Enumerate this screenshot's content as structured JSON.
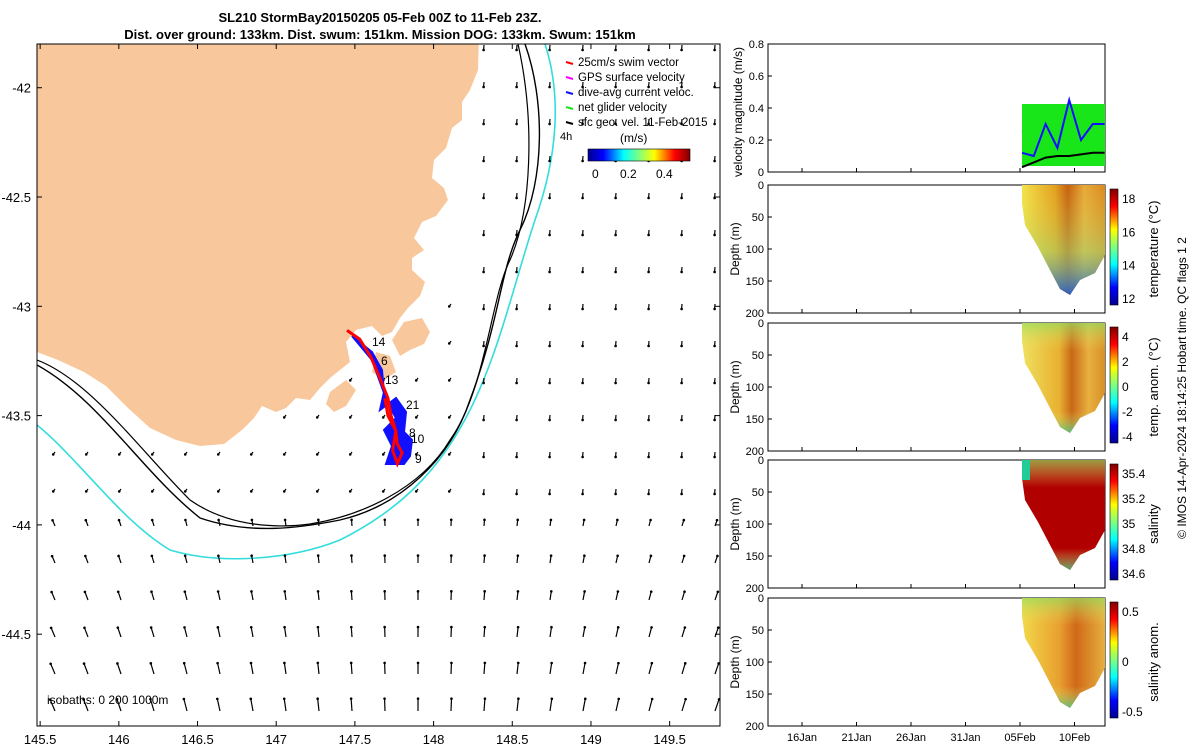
{
  "header": {
    "title_line1": "SL210 StormBay20150205 05-Feb 00Z to 11-Feb 23Z.",
    "title_line2": "Dist. over ground: 133km. Dist. swum: 151km. Mission DOG: 133km. Swum: 151km"
  },
  "colors": {
    "land": "#f8c89c",
    "track_red": "#ff0000",
    "track_blue": "#1010ff",
    "iso_cyan": "#33dddd",
    "iso_black": "#000000",
    "net_green": "#19e619"
  },
  "map": {
    "legend": [
      {
        "label": "25cm/s swim vector",
        "color": "#ff0000"
      },
      {
        "label": "GPS surface velocity",
        "color": "#ff00ff"
      },
      {
        "label": "dive-avg current veloc.",
        "color": "#1010ff"
      },
      {
        "label": "net glider velocity",
        "color": "#19e619"
      },
      {
        "label": "sfc geo. vel. 11-Feb-2015",
        "color": "#000000"
      }
    ],
    "scale_label": "4h",
    "colorbar_label": "(m/s)",
    "colorbar_ticks": [
      "0",
      "0.2",
      "0.4"
    ],
    "isobaths_label": "isobaths: 0  200  1000m",
    "track_labels": [
      "14",
      "6",
      "13",
      "21",
      "8",
      "10",
      "9"
    ]
  },
  "panels": {
    "velocity_ylabel": "velocity magnitude (m/s)",
    "depth_ylabel": "Depth (m)",
    "depth_ticks": [
      "0",
      "50",
      "100",
      "150",
      "200"
    ],
    "colorbars": [
      {
        "label": "temperature (°C)",
        "ticks": [
          "18",
          "16",
          "14",
          "12"
        ]
      },
      {
        "label": "temp. anom. (°C)",
        "ticks": [
          "4",
          "2",
          "0",
          "-2",
          "-4"
        ]
      },
      {
        "label": "salinity",
        "ticks": [
          "35.4",
          "35.2",
          "35",
          "34.8",
          "34.6"
        ]
      },
      {
        "label": "salinity anom.",
        "ticks": [
          "0.5",
          "0",
          "-0.5"
        ]
      }
    ],
    "footer": "© IMOS 14-Apr-2024 18:14:25 Hobart time. QC flags 1  2"
  },
  "chart_data": [
    {
      "type": "scatter",
      "title": "SL210 StormBay20150205 05-Feb 00Z to 11-Feb 23Z.",
      "xlabel": "",
      "ylabel": "",
      "xlim": [
        145.48,
        149.82
      ],
      "ylim": [
        -44.92,
        -41.8
      ],
      "xticks": [
        145.5,
        146,
        146.5,
        147,
        147.5,
        148,
        148.5,
        149,
        149.5
      ],
      "yticks": [
        -42,
        -42.5,
        -43,
        -43.5,
        -44,
        -44.5
      ],
      "xtick_labels": [
        "145.5",
        "146",
        "146.5",
        "147",
        "147.5",
        "148",
        "148.5",
        "149",
        "149.5"
      ],
      "ytick_labels": [
        "-42",
        "-42.5",
        "-43",
        "-43.5",
        "-44",
        "-44.5"
      ],
      "series": [
        {
          "name": "25cm/s swim vector",
          "points": [
            [
              147.45,
              -43.11
            ],
            [
              147.53,
              -43.15
            ],
            [
              147.6,
              -43.23
            ],
            [
              147.66,
              -43.33
            ],
            [
              147.71,
              -43.42
            ],
            [
              147.73,
              -43.5
            ],
            [
              147.76,
              -43.57
            ],
            [
              147.77,
              -43.63
            ],
            [
              147.8,
              -43.67
            ],
            [
              147.77,
              -43.72
            ],
            [
              147.74,
              -43.66
            ],
            [
              147.76,
              -43.57
            ],
            [
              147.71,
              -43.5
            ],
            [
              147.69,
              -43.42
            ]
          ]
        }
      ]
    },
    {
      "type": "line",
      "ylabel": "velocity magnitude (m/s)",
      "ylim": [
        0,
        0.8
      ],
      "yticks": [
        0,
        0.2,
        0.4,
        0.6,
        0.8
      ],
      "xtick_labels": [
        "16Jan",
        "21Jan",
        "26Jan",
        "31Jan",
        "05Feb",
        "10Feb"
      ],
      "series": [
        {
          "name": "net glider velocity",
          "x": [
            "05Feb",
            "06Feb",
            "07Feb",
            "08Feb",
            "09Feb",
            "10Feb",
            "11Feb",
            "12Feb"
          ],
          "values": [
            0.25,
            0.3,
            0.3,
            0.28,
            0.3,
            0.3,
            0.28,
            0.2
          ]
        },
        {
          "name": "dive-avg current veloc.",
          "x": [
            "05Feb",
            "06Feb",
            "07Feb",
            "08Feb",
            "09Feb",
            "10Feb",
            "11Feb",
            "12Feb"
          ],
          "values": [
            0.12,
            0.1,
            0.3,
            0.15,
            0.45,
            0.2,
            0.3,
            0.3
          ]
        },
        {
          "name": "sfc geo. vel. 11-Feb-2015",
          "x": [
            "05Feb",
            "06Feb",
            "07Feb",
            "08Feb",
            "09Feb",
            "10Feb",
            "11Feb",
            "12Feb"
          ],
          "values": [
            0.03,
            0.06,
            0.09,
            0.1,
            0.1,
            0.11,
            0.12,
            0.12
          ]
        }
      ]
    }
  ]
}
